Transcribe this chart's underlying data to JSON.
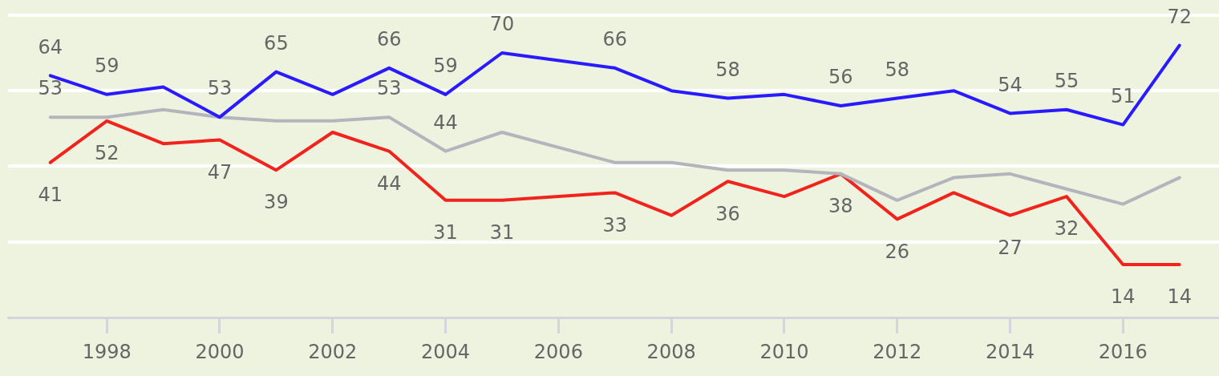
{
  "chart_data": {
    "type": "line",
    "x": [
      1997,
      1998,
      1999,
      2000,
      2001,
      2002,
      2003,
      2004,
      2005,
      2007,
      2008,
      2009,
      2010,
      2011,
      2012,
      2013,
      2014,
      2015,
      2016,
      2017
    ],
    "series": [
      {
        "color": "#2a1aff",
        "values": [
          64,
          59,
          61,
          53,
          65,
          59,
          66,
          59,
          70,
          66,
          60,
          58,
          59,
          56,
          58,
          60,
          54,
          55,
          51,
          72
        ],
        "value_labels": [
          "64",
          "59",
          null,
          "53",
          "65",
          null,
          "66",
          "59",
          "70",
          "66",
          null,
          "58",
          null,
          "56",
          "58",
          null,
          "54",
          "55",
          "51",
          "72"
        ]
      },
      {
        "color": "#b4b4bc",
        "values": [
          53,
          53,
          55,
          53,
          52,
          52,
          53,
          44,
          49,
          41,
          41,
          39,
          39,
          38,
          31,
          37,
          38,
          34,
          30,
          37
        ],
        "value_labels": [
          "53",
          null,
          null,
          null,
          null,
          null,
          "53",
          "44",
          null,
          null,
          null,
          null,
          null,
          null,
          null,
          null,
          null,
          null,
          null,
          null
        ]
      },
      {
        "color": "#f2231c",
        "values": [
          41,
          52,
          46,
          47,
          39,
          49,
          44,
          31,
          31,
          33,
          27,
          36,
          32,
          38,
          26,
          33,
          27,
          32,
          14,
          14
        ],
        "value_labels": [
          "41",
          "52",
          null,
          "47",
          "39",
          null,
          "44",
          "31",
          "31",
          "33",
          null,
          "36",
          null,
          "38",
          "26",
          null,
          "27",
          "32",
          "14",
          "14"
        ]
      }
    ],
    "xlim": [
      1996.25,
      2017.7
    ],
    "xticks": [
      1998,
      2000,
      2002,
      2004,
      2006,
      2008,
      2010,
      2012,
      2014,
      2016
    ],
    "ylim": [
      0,
      84
    ],
    "yticks": [
      {
        "value": 0,
        "label": null
      },
      {
        "value": 20,
        "label": null
      },
      {
        "value": 40,
        "label": null
      },
      {
        "value": 60,
        "label": null
      },
      {
        "value": 80,
        "label": null
      }
    ],
    "tick_labels": "x",
    "grid": "y",
    "legend": false,
    "marker": "none",
    "line_style": "solid"
  }
}
